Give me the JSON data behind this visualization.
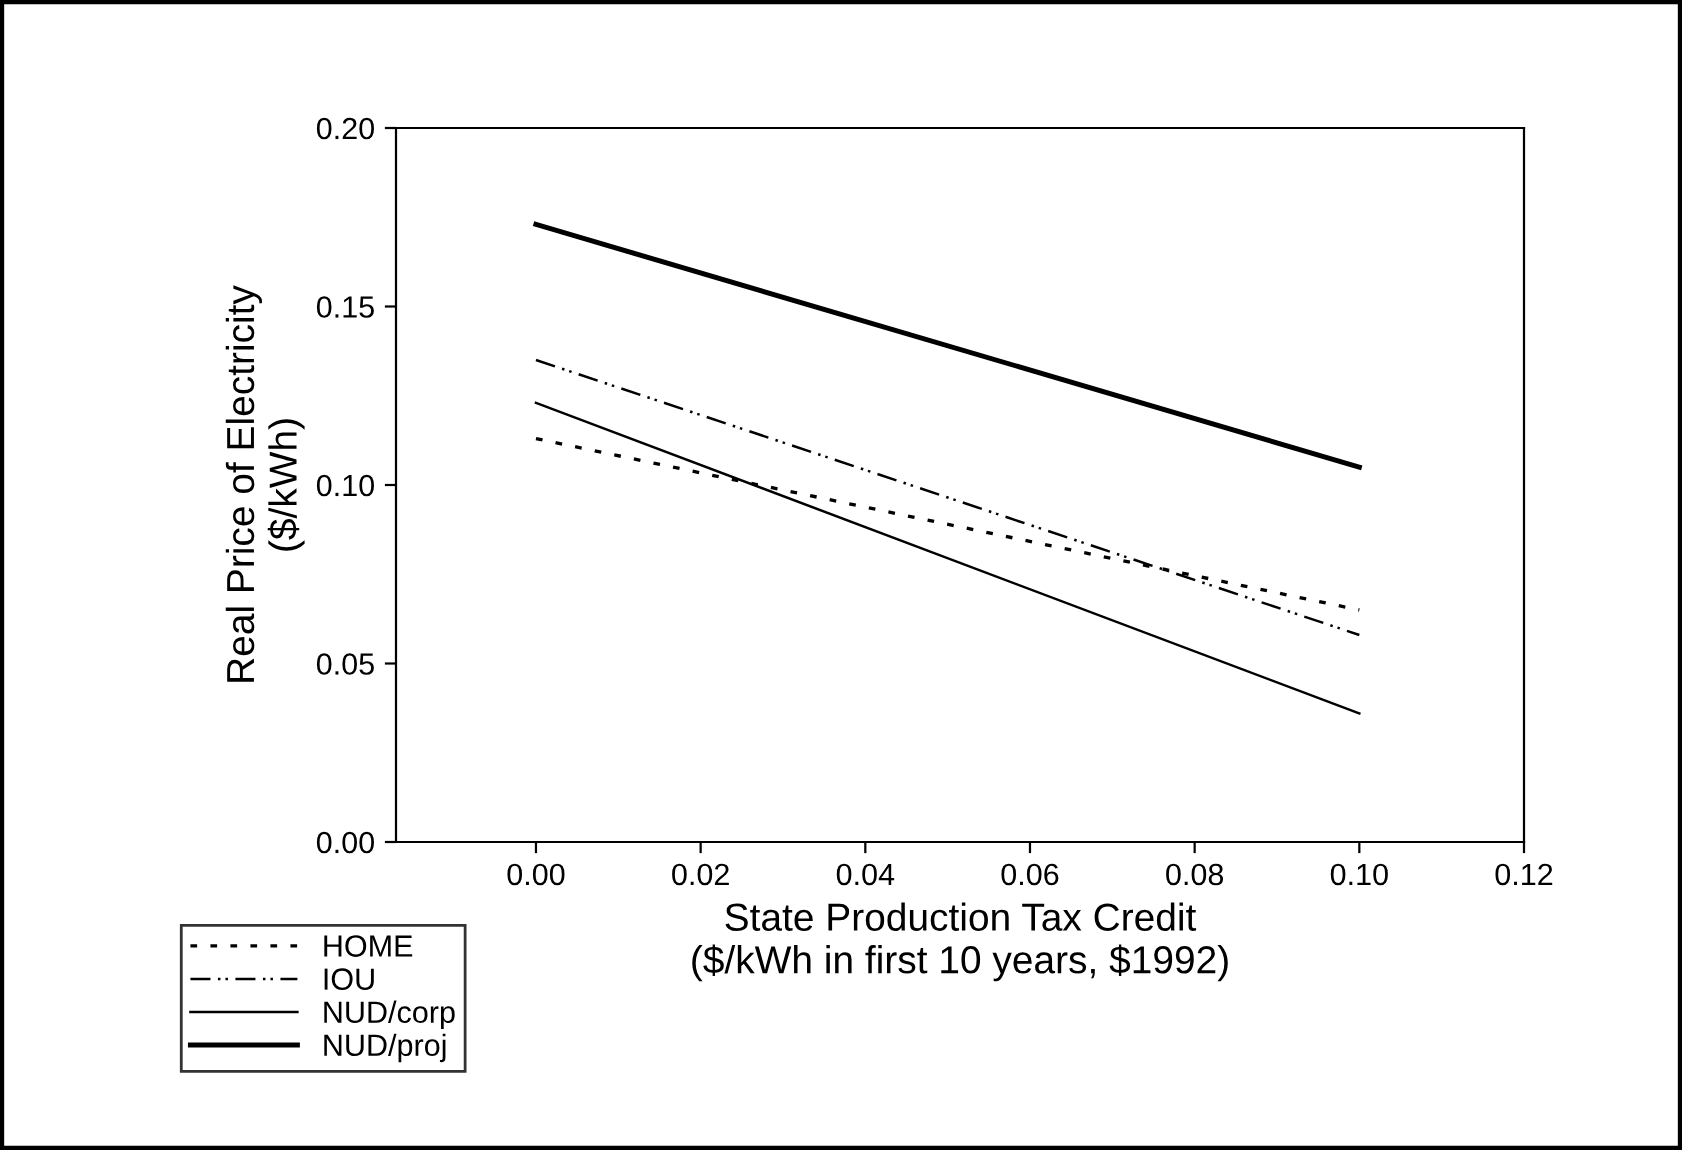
{
  "chart_data": {
    "type": "line",
    "xlabel": "State Production Tax Credit\n($/kWh in first 10 years, $1992)",
    "ylabel": "Real Price of Electricity\n($/kWh)",
    "x": [
      0,
      0.1
    ],
    "series": [
      {
        "name": "HOME",
        "color": "#000000",
        "values": [
          0.113,
          0.065
        ],
        "line_style": "dotted"
      },
      {
        "name": "IOU",
        "color": "#000000",
        "values": [
          0.135,
          0.058
        ],
        "line_style": "dashed"
      },
      {
        "name": "NUD/corp",
        "color": "#000000",
        "values": [
          0.123,
          0.036
        ],
        "line_style": "solid"
      },
      {
        "name": "NUD/proj",
        "color": "#000000",
        "values": [
          0.173,
          0.105
        ],
        "line_style": "solid"
      }
    ],
    "xlim": [
      -0.017,
      0.12
    ],
    "ylim": [
      0,
      0.2
    ],
    "xticks": [
      {
        "value": 0,
        "label": "0.00"
      },
      {
        "value": 0.02,
        "label": "0.02"
      },
      {
        "value": 0.04,
        "label": "0.04"
      },
      {
        "value": 0.06,
        "label": "0.06"
      },
      {
        "value": 0.08,
        "label": "0.08"
      },
      {
        "value": 0.1,
        "label": "0.10"
      },
      {
        "value": 0.12,
        "label": "0.12"
      }
    ],
    "yticks": [
      {
        "value": 0,
        "label": "0.00"
      },
      {
        "value": 0.05,
        "label": "0.05"
      },
      {
        "value": 0.1,
        "label": "0.10"
      },
      {
        "value": 0.15,
        "label": "0.15"
      },
      {
        "value": 0.2,
        "label": "0.20"
      }
    ],
    "grid": false,
    "legend": "bottom left",
    "marker": "none"
  }
}
